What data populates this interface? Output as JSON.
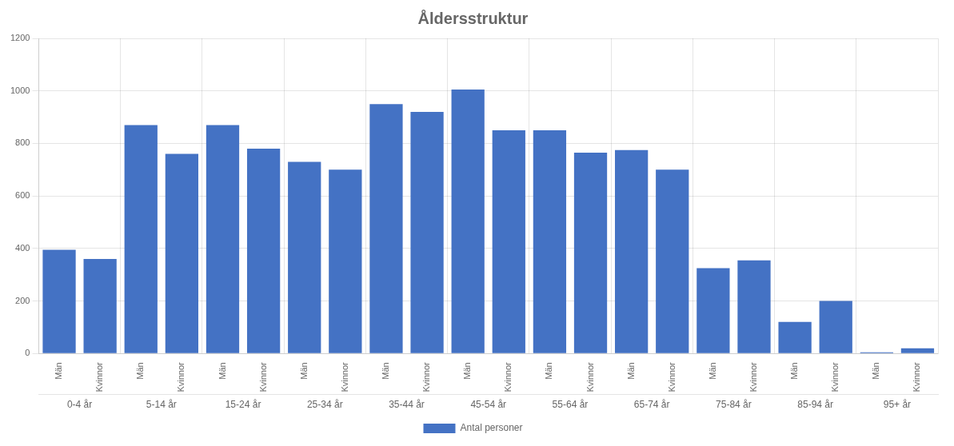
{
  "chart_data": {
    "type": "bar",
    "title": "Åldersstruktur",
    "categories": [
      "Män",
      "Kvinnor",
      "Män",
      "Kvinnor",
      "Män",
      "Kvinnor",
      "Män",
      "Kvinnor",
      "Män",
      "Kvinnor",
      "Män",
      "Kvinnor",
      "Män",
      "Kvinnor",
      "Män",
      "Kvinnor",
      "Män",
      "Kvinnor",
      "Män",
      "Kvinnor",
      "Män",
      "Kvinnor"
    ],
    "group_labels": [
      "0-4 år",
      "5-14 år",
      "15-24 år",
      "25-34 år",
      "35-44 år",
      "45-54 år",
      "55-64 år",
      "65-74 år",
      "75-84 år",
      "85-94 år",
      "95+ år"
    ],
    "series": [
      {
        "name": "Antal personer",
        "color": "#4472C4",
        "values": [
          395,
          360,
          870,
          760,
          870,
          780,
          730,
          700,
          950,
          920,
          1005,
          850,
          850,
          765,
          775,
          700,
          325,
          355,
          120,
          200,
          5,
          20
        ]
      }
    ],
    "ylim": [
      0,
      1200
    ],
    "yticks": [
      0,
      200,
      400,
      600,
      800,
      1000,
      1200
    ],
    "grid": true,
    "legend": "bottom"
  }
}
